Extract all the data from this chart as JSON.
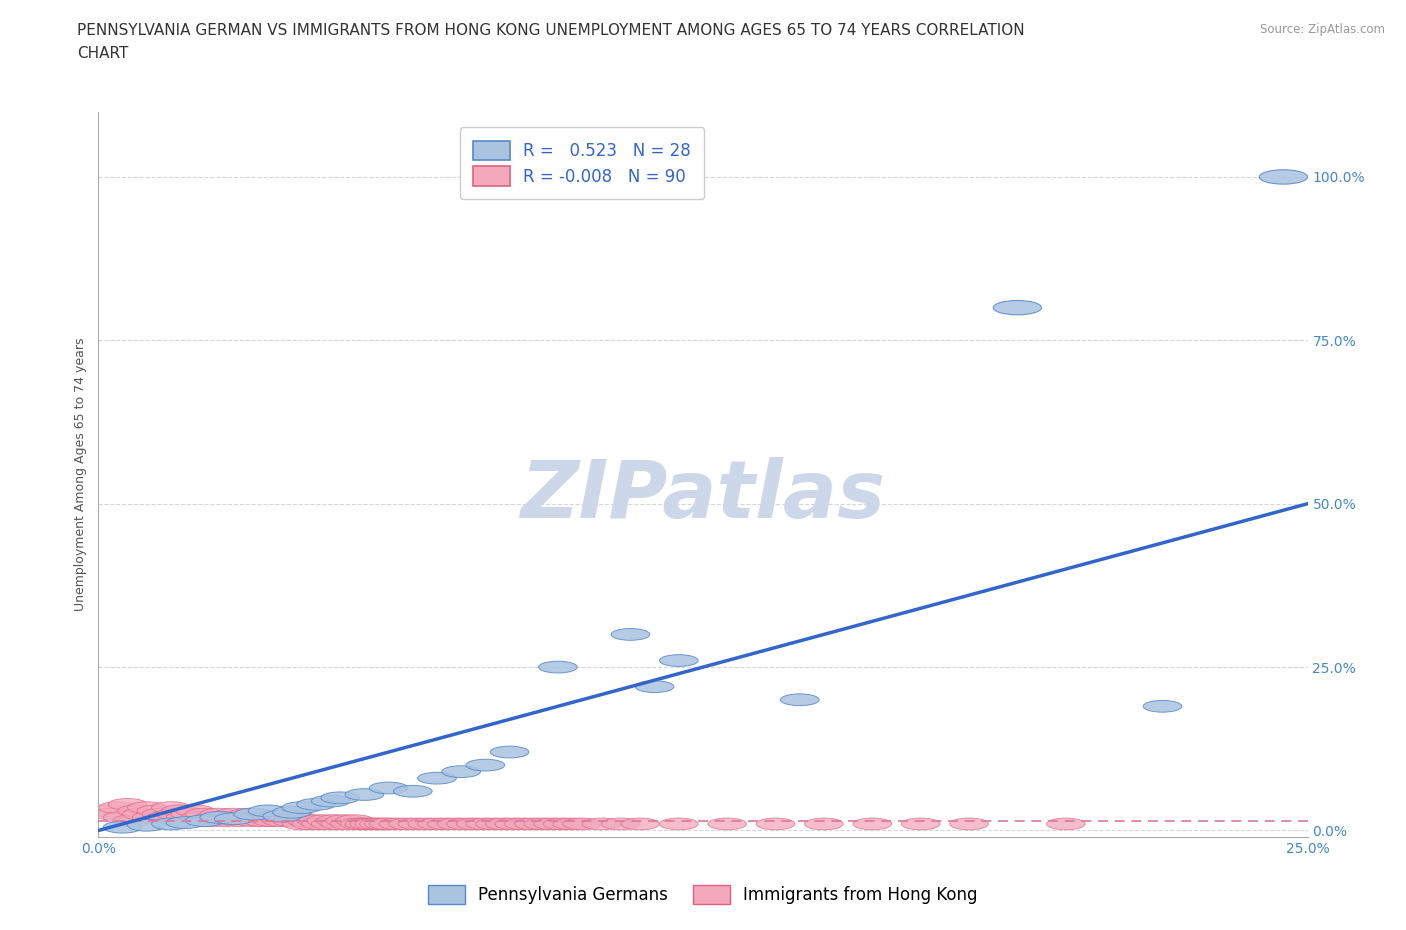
{
  "title_line1": "PENNSYLVANIA GERMAN VS IMMIGRANTS FROM HONG KONG UNEMPLOYMENT AMONG AGES 65 TO 74 YEARS CORRELATION",
  "title_line2": "CHART",
  "source_text": "Source: ZipAtlas.com",
  "ylabel": "Unemployment Among Ages 65 to 74 years",
  "xlim": [
    0.0,
    0.25
  ],
  "ylim": [
    -0.01,
    1.1
  ],
  "yticks": [
    0.0,
    0.25,
    0.5,
    0.75,
    1.0
  ],
  "ytick_labels": [
    "0.0%",
    "25.0%",
    "50.0%",
    "75.0%",
    "100.0%"
  ],
  "xticks": [
    0.0,
    0.25
  ],
  "xtick_labels": [
    "0.0%",
    "25.0%"
  ],
  "legend_labels": [
    "Pennsylvania Germans",
    "Immigrants from Hong Kong"
  ],
  "blue_R": 0.523,
  "blue_N": 28,
  "pink_R": -0.008,
  "pink_N": 90,
  "blue_color": "#aac4e0",
  "pink_color": "#f4a8bc",
  "blue_edge_color": "#5588cc",
  "pink_edge_color": "#e06080",
  "blue_line_color": "#3366cc",
  "pink_line_color": "#dd7799",
  "tick_color": "#4488cc",
  "watermark_color": "#ccd8ea",
  "background_color": "#ffffff",
  "grid_color": "#cccccc",
  "blue_scatter_x": [
    0.005,
    0.01,
    0.015,
    0.018,
    0.022,
    0.025,
    0.028,
    0.032,
    0.035,
    0.038,
    0.04,
    0.042,
    0.045,
    0.048,
    0.05,
    0.055,
    0.06,
    0.065,
    0.07,
    0.075,
    0.08,
    0.085,
    0.095,
    0.11,
    0.115,
    0.12,
    0.145,
    0.22
  ],
  "blue_scatter_y": [
    0.005,
    0.008,
    0.01,
    0.012,
    0.015,
    0.02,
    0.018,
    0.025,
    0.03,
    0.022,
    0.028,
    0.035,
    0.04,
    0.045,
    0.05,
    0.055,
    0.065,
    0.06,
    0.08,
    0.09,
    0.1,
    0.12,
    0.25,
    0.3,
    0.22,
    0.26,
    0.2,
    0.19
  ],
  "pink_scatter_x": [
    0.002,
    0.003,
    0.004,
    0.005,
    0.006,
    0.007,
    0.008,
    0.009,
    0.01,
    0.011,
    0.012,
    0.013,
    0.014,
    0.015,
    0.016,
    0.017,
    0.018,
    0.019,
    0.02,
    0.021,
    0.022,
    0.023,
    0.024,
    0.025,
    0.026,
    0.027,
    0.028,
    0.029,
    0.03,
    0.031,
    0.032,
    0.033,
    0.034,
    0.035,
    0.036,
    0.037,
    0.038,
    0.039,
    0.04,
    0.041,
    0.042,
    0.043,
    0.044,
    0.045,
    0.046,
    0.047,
    0.048,
    0.049,
    0.05,
    0.051,
    0.052,
    0.053,
    0.054,
    0.055,
    0.056,
    0.057,
    0.058,
    0.059,
    0.06,
    0.062,
    0.064,
    0.066,
    0.068,
    0.07,
    0.072,
    0.074,
    0.076,
    0.078,
    0.08,
    0.082,
    0.084,
    0.086,
    0.088,
    0.09,
    0.092,
    0.094,
    0.096,
    0.098,
    0.1,
    0.104,
    0.108,
    0.112,
    0.12,
    0.13,
    0.14,
    0.15,
    0.16,
    0.17,
    0.18,
    0.2
  ],
  "pink_scatter_y": [
    0.03,
    0.025,
    0.035,
    0.02,
    0.04,
    0.015,
    0.03,
    0.025,
    0.035,
    0.02,
    0.03,
    0.025,
    0.02,
    0.035,
    0.025,
    0.03,
    0.02,
    0.025,
    0.03,
    0.02,
    0.025,
    0.015,
    0.02,
    0.025,
    0.015,
    0.02,
    0.025,
    0.015,
    0.02,
    0.025,
    0.015,
    0.02,
    0.015,
    0.02,
    0.015,
    0.02,
    0.015,
    0.02,
    0.015,
    0.02,
    0.01,
    0.015,
    0.01,
    0.015,
    0.01,
    0.015,
    0.01,
    0.015,
    0.01,
    0.015,
    0.01,
    0.015,
    0.01,
    0.01,
    0.01,
    0.01,
    0.01,
    0.01,
    0.01,
    0.01,
    0.01,
    0.01,
    0.01,
    0.01,
    0.01,
    0.01,
    0.01,
    0.01,
    0.01,
    0.01,
    0.01,
    0.01,
    0.01,
    0.01,
    0.01,
    0.01,
    0.01,
    0.01,
    0.01,
    0.01,
    0.01,
    0.01,
    0.01,
    0.01,
    0.01,
    0.01,
    0.01,
    0.01,
    0.01,
    0.01
  ],
  "title_fontsize": 11,
  "axis_label_fontsize": 9,
  "tick_fontsize": 10,
  "legend_fontsize": 12,
  "blue_line_slope": 2.0,
  "blue_line_intercept": 0.0,
  "pink_line_slope": 0.0,
  "pink_line_intercept": 0.015
}
